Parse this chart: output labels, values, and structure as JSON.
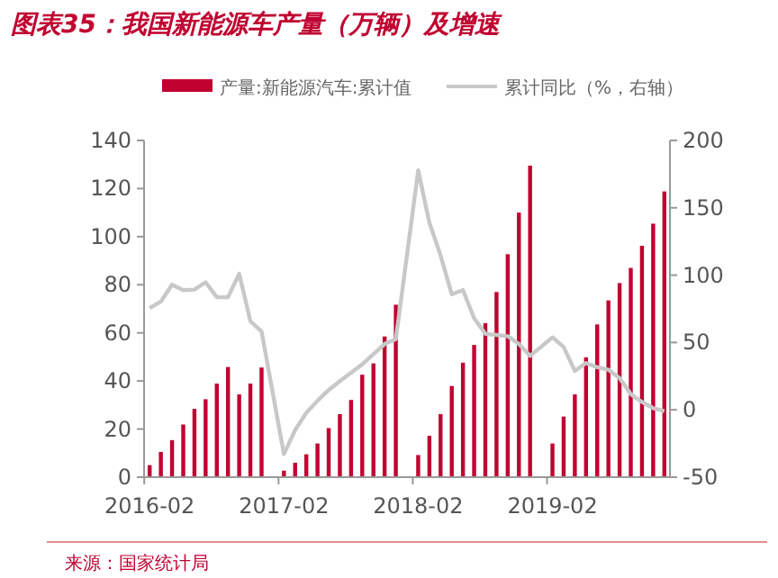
{
  "chart_data": {
    "type": "bar",
    "title": "图表35：我国新能源车产量（万辆）及增速",
    "categories": [
      "2016-02",
      null,
      null,
      null,
      null,
      null,
      null,
      null,
      null,
      null,
      null,
      null,
      "2017-02",
      null,
      null,
      null,
      null,
      null,
      null,
      null,
      null,
      null,
      null,
      null,
      "2018-02",
      null,
      null,
      null,
      null,
      null,
      null,
      null,
      null,
      null,
      null,
      null,
      "2019-02",
      null,
      null,
      null,
      null,
      null,
      null,
      null,
      null,
      null,
      null
    ],
    "series": [
      {
        "name": "产量:新能源汽车:累计值",
        "color": "#c00030",
        "values": [
          5,
          10.5,
          15.4,
          21.9,
          28.4,
          32.4,
          38.9,
          45.8,
          34.4,
          38.9,
          45.6,
          null,
          2.7,
          6,
          9.5,
          14,
          20.4,
          26.2,
          32.1,
          42.6,
          47.3,
          58.5,
          71.7,
          null,
          9.2,
          17.2,
          26.2,
          37.9,
          47.6,
          55,
          64,
          77,
          92.7,
          110,
          129.5,
          null,
          14,
          25.2,
          34.4,
          49.8,
          63.5,
          73.5,
          80.7,
          87,
          96.2,
          105.4,
          118.8
        ]
      },
      {
        "name": "累计同比（%，右轴）",
        "type": "line",
        "axis": "y2",
        "color": "#c8c8c8",
        "values": [
          75.6,
          80.4,
          92.9,
          88.9,
          89.3,
          94.7,
          83.6,
          83.6,
          101,
          65.8,
          58.2,
          null,
          -32.9,
          -15.1,
          -2.2,
          6.7,
          14.7,
          21.3,
          27.6,
          33.8,
          41.3,
          48.9,
          52.4,
          null,
          177.8,
          139,
          114.7,
          85.8,
          88.9,
          68,
          56.4,
          55.6,
          54.7,
          48.9,
          40,
          null,
          53.8,
          46.7,
          28.9,
          34.7,
          31.6,
          29.8,
          23.6,
          11.6,
          5.8,
          1.3,
          -0.9
        ]
      }
    ],
    "ylim": [
      0,
      140
    ],
    "yticks": [
      0,
      20,
      40,
      60,
      80,
      100,
      120,
      140
    ],
    "y2lim": [
      -50,
      200
    ],
    "y2ticks": [
      -50,
      0,
      50,
      100,
      150,
      200
    ],
    "grid": false,
    "legend": "top",
    "marker": "none",
    "line_style": "solid",
    "annotations": [
      "来源：国家统计局"
    ]
  }
}
